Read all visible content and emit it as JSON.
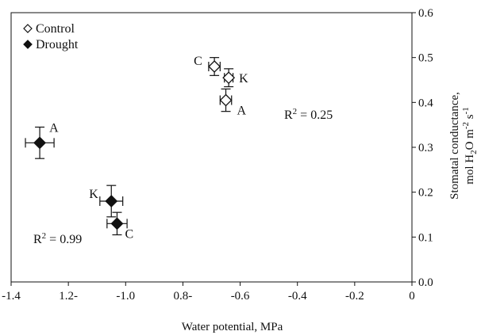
{
  "chart_data": {
    "type": "scatter",
    "xlabel": "Water potential, MPa",
    "ylabel": "Stomatal conductance,",
    "ylabel_line2_parts": [
      "mol H",
      "2",
      "O m",
      "-2",
      " s",
      "-1"
    ],
    "xlim": [
      -1.4,
      0
    ],
    "ylim": [
      0.0,
      0.6
    ],
    "x_ticks": [
      -1.4,
      -1.2,
      -1.0,
      -0.8,
      -0.6,
      -0.4,
      -0.2,
      0
    ],
    "x_tick_labels": [
      "-1.4",
      "1.2-",
      "-1.0",
      "0.8-",
      "-0.6",
      "-0.4",
      "-0.2",
      "0"
    ],
    "y_ticks": [
      0.0,
      0.1,
      0.2,
      0.3,
      0.4,
      0.5,
      0.6
    ],
    "y_tick_labels": [
      "0.0",
      "0.1",
      "0.2",
      "0.3",
      "0.4",
      "0.5",
      "0.6"
    ],
    "y_axis_side": "right",
    "grid": false,
    "legend_position": "top-left",
    "series": [
      {
        "name": "Control",
        "marker": "open-diamond",
        "color": "#111111",
        "points": [
          {
            "label": "C",
            "x": -0.69,
            "y": 0.48,
            "xerr": 0.02,
            "yerr": 0.02
          },
          {
            "label": "K",
            "x": -0.64,
            "y": 0.455,
            "xerr": 0.015,
            "yerr": 0.02
          },
          {
            "label": "A",
            "x": -0.65,
            "y": 0.405,
            "xerr": 0.02,
            "yerr": 0.025
          }
        ],
        "annotation": {
          "prefix": "R",
          "sup": "2",
          "suffix": " = 0.25"
        }
      },
      {
        "name": "Drought",
        "marker": "filled-diamond",
        "color": "#111111",
        "points": [
          {
            "label": "A",
            "x": -1.3,
            "y": 0.31,
            "xerr": 0.05,
            "yerr": 0.035
          },
          {
            "label": "K",
            "x": -1.05,
            "y": 0.18,
            "xerr": 0.04,
            "yerr": 0.035
          },
          {
            "label": "C",
            "x": -1.03,
            "y": 0.13,
            "xerr": 0.035,
            "yerr": 0.025
          }
        ],
        "annotation": {
          "prefix": "R",
          "sup": "2",
          "suffix": " = 0.99"
        }
      }
    ]
  }
}
